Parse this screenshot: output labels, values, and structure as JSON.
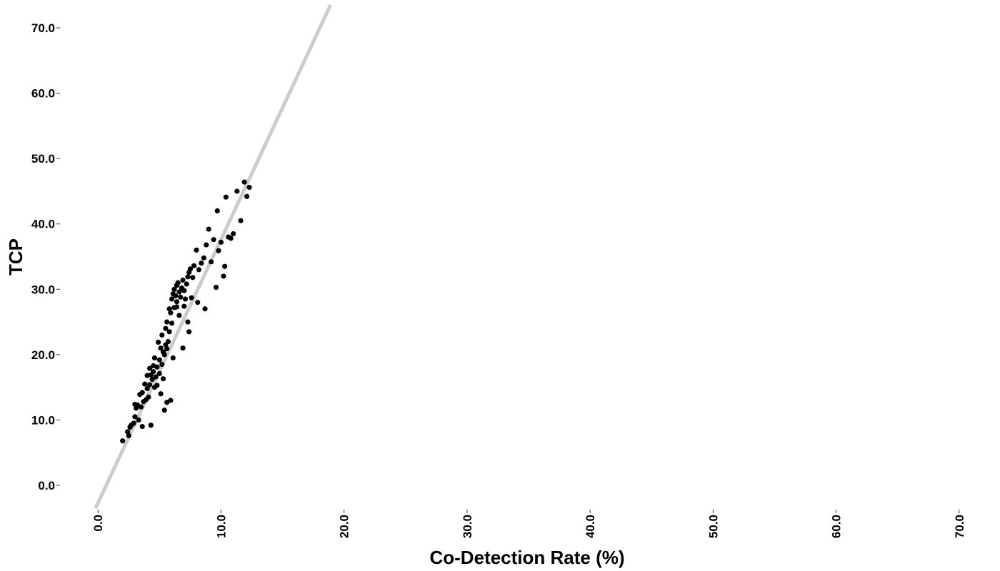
{
  "chart_data": {
    "type": "scatter",
    "title": "",
    "xlabel": "Co-Detection Rate (%)",
    "ylabel": "TCP",
    "xlim": [
      -1.0,
      71.0
    ],
    "ylim": [
      -3.5,
      73.5
    ],
    "xticks": [
      0,
      10,
      20,
      30,
      40,
      50,
      60,
      70
    ],
    "xtick_labels": [
      "0.0",
      "10.0",
      "20.0",
      "30.0",
      "40.0",
      "50.0",
      "60.0",
      "70.0"
    ],
    "yticks": [
      0,
      10,
      20,
      30,
      40,
      50,
      60,
      70
    ],
    "ytick_labels": [
      "0.0",
      "10.0",
      "20.0",
      "30.0",
      "40.0",
      "50.0",
      "60.0",
      "70.0"
    ],
    "grid": false,
    "legend": "none",
    "colors": {
      "points": "#000000",
      "reference_line": "#cccccc"
    },
    "reference_line": {
      "x": [
        -0.2,
        18.9
      ],
      "y": [
        -3.5,
        73.5
      ]
    },
    "series": [
      {
        "x": [
          2.0,
          2.5,
          2.6,
          2.7,
          2.9,
          3.0,
          3.1,
          3.2,
          3.3,
          3.4,
          3.5,
          3.6,
          3.7,
          3.8,
          3.9,
          4.0,
          4.0,
          4.1,
          4.2,
          4.2,
          4.3,
          4.4,
          4.5,
          4.5,
          4.6,
          4.7,
          4.8,
          4.8,
          4.9,
          5.0,
          5.0,
          5.1,
          5.2,
          5.2,
          5.3,
          5.3,
          5.4,
          5.5,
          5.5,
          5.6,
          5.6,
          5.7,
          5.8,
          5.8,
          5.9,
          6.0,
          6.0,
          6.1,
          6.2,
          6.2,
          6.3,
          6.4,
          6.4,
          6.5,
          6.6,
          6.6,
          6.7,
          6.8,
          6.9,
          7.0,
          7.0,
          7.1,
          7.2,
          7.3,
          7.4,
          7.5,
          7.6,
          7.7,
          7.8,
          8.0,
          8.2,
          8.4,
          8.6,
          8.8,
          9.0,
          9.2,
          9.4,
          9.6,
          9.8,
          10.0,
          10.2,
          10.4,
          10.6,
          10.8,
          11.0,
          11.3,
          11.6,
          11.9,
          12.1,
          12.3,
          5.4,
          5.6,
          6.1,
          4.3,
          3.6,
          5.9,
          6.9,
          7.3,
          8.7,
          10.3,
          9.7,
          6.4,
          7.4,
          5.1,
          4.6,
          3.0,
          2.4,
          8.1
        ],
        "y": [
          6.8,
          7.6,
          8.9,
          9.2,
          9.5,
          10.5,
          11.8,
          12.3,
          10.0,
          13.9,
          12.0,
          14.2,
          12.8,
          15.5,
          13.1,
          16.8,
          14.8,
          13.5,
          17.9,
          15.4,
          16.9,
          16.2,
          17.4,
          18.3,
          19.5,
          16.6,
          18.1,
          15.3,
          21.9,
          17.1,
          19.2,
          21.0,
          18.5,
          23.0,
          16.3,
          20.4,
          20.0,
          21.5,
          24.0,
          20.9,
          25.0,
          22.0,
          27.0,
          23.5,
          26.4,
          28.5,
          24.8,
          29.3,
          27.2,
          30.0,
          29.0,
          28.1,
          30.6,
          31.0,
          29.6,
          26.0,
          28.8,
          30.2,
          31.4,
          29.8,
          27.4,
          28.5,
          30.8,
          31.9,
          32.6,
          33.1,
          28.7,
          31.8,
          33.6,
          36.0,
          33.0,
          34.0,
          34.8,
          36.8,
          39.2,
          34.2,
          37.6,
          30.3,
          35.9,
          37.2,
          32.0,
          44.1,
          38.0,
          37.8,
          38.5,
          45.0,
          40.5,
          46.4,
          44.2,
          45.6,
          11.5,
          12.7,
          19.5,
          9.2,
          9.0,
          13.0,
          21.0,
          25.0,
          27.0,
          33.5,
          42.0,
          27.3,
          23.5,
          14.0,
          15.0,
          12.4,
          8.2,
          28.0
        ]
      }
    ]
  }
}
